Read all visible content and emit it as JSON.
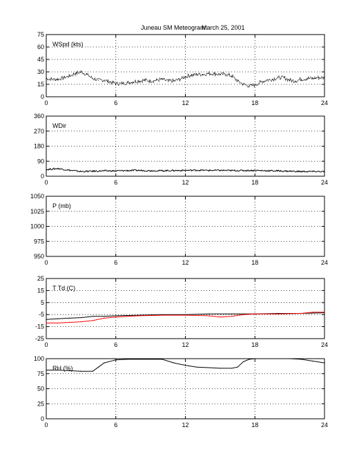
{
  "title": "Juneau SM Meteogram:",
  "date": "March 25, 2001",
  "chart_data": [
    {
      "type": "line",
      "label": "WSpd (kts)",
      "xlim": [
        0,
        24
      ],
      "ylim": [
        0,
        75
      ],
      "xticks": [
        "0",
        "6",
        "12",
        "18",
        "24"
      ],
      "yticks": [
        "0",
        "15",
        "30",
        "45",
        "60",
        "75"
      ],
      "grid": true,
      "series": [
        {
          "color": "#000000",
          "style": "points",
          "x": [
            0,
            0.5,
            1,
            1.5,
            2,
            2.5,
            3,
            3.5,
            4,
            4.5,
            5,
            5.5,
            6,
            6.5,
            7,
            7.5,
            8,
            8.5,
            9,
            9.5,
            10,
            10.5,
            11,
            11.5,
            12,
            12.5,
            13,
            13.5,
            14,
            14.5,
            15,
            15.5,
            16,
            16.5,
            17,
            17.5,
            18,
            18.5,
            19,
            19.5,
            20,
            20.5,
            21,
            21.5,
            22,
            22.5,
            23,
            23.5,
            24
          ],
          "y": [
            22,
            21,
            21,
            23,
            25,
            28,
            30,
            27,
            22,
            20,
            20,
            18,
            16,
            16,
            17,
            18,
            19,
            20,
            19,
            20,
            21,
            19,
            19,
            21,
            24,
            26,
            27,
            27,
            28,
            28,
            27,
            27,
            25,
            19,
            15,
            13,
            14,
            18,
            20,
            21,
            23,
            23,
            20,
            19,
            21,
            22,
            22,
            23,
            23
          ]
        }
      ]
    },
    {
      "type": "line",
      "label": "WDir",
      "xlim": [
        0,
        24
      ],
      "ylim": [
        0,
        360
      ],
      "xticks": [
        "0",
        "6",
        "12",
        "18",
        "24"
      ],
      "yticks": [
        "0",
        "90",
        "180",
        "270",
        "360"
      ],
      "grid": true,
      "series": [
        {
          "color": "#000000",
          "style": "noisy-line",
          "x": [
            0,
            1,
            2,
            3,
            4,
            5,
            6,
            7,
            8,
            9,
            10,
            11,
            12,
            13,
            14,
            15,
            16,
            17,
            18,
            19,
            20,
            21,
            22,
            23,
            24
          ],
          "y": [
            40,
            46,
            36,
            28,
            30,
            32,
            32,
            34,
            35,
            33,
            33,
            34,
            35,
            36,
            35,
            35,
            34,
            34,
            35,
            33,
            32,
            30,
            28,
            28,
            28
          ]
        }
      ]
    },
    {
      "type": "line",
      "label": "P (mb)",
      "xlim": [
        0,
        24
      ],
      "ylim": [
        950,
        1050
      ],
      "xticks": [
        "0",
        "6",
        "12",
        "18",
        "24"
      ],
      "yticks": [
        "950",
        "975",
        "1000",
        "1025",
        "1050"
      ],
      "grid": true,
      "series": []
    },
    {
      "type": "line",
      "label": "T Td (C)",
      "xlim": [
        0,
        24
      ],
      "ylim": [
        -25,
        25
      ],
      "xticks": [
        "0",
        "6",
        "12",
        "18",
        "24"
      ],
      "yticks": [
        "-25",
        "-15",
        "-5",
        "5",
        "15",
        "25"
      ],
      "grid": true,
      "series": [
        {
          "color": "#000000",
          "style": "line",
          "x": [
            0,
            1,
            2,
            3,
            4,
            5,
            6,
            8,
            10,
            12,
            14,
            16,
            18,
            20,
            22,
            24
          ],
          "y": [
            -9,
            -8.5,
            -8,
            -7.5,
            -6.5,
            -6.5,
            -6,
            -5.5,
            -5,
            -5,
            -4.5,
            -4.5,
            -4.5,
            -4,
            -4,
            -3.5
          ]
        },
        {
          "color": "#ff0000",
          "style": "line",
          "x": [
            0,
            1,
            2,
            3,
            4,
            5,
            6,
            8,
            10,
            12,
            14,
            15,
            16,
            17,
            18,
            20,
            22,
            23,
            24
          ],
          "y": [
            -12,
            -12,
            -11.5,
            -11,
            -10,
            -8,
            -7,
            -6,
            -5.5,
            -5.5,
            -6,
            -7,
            -6.5,
            -5,
            -4.5,
            -4.5,
            -4,
            -3,
            -3
          ]
        }
      ]
    },
    {
      "type": "line",
      "label": "RH (%)",
      "xlim": [
        0,
        24
      ],
      "ylim": [
        0,
        100
      ],
      "xticks": [
        "0",
        "6",
        "12",
        "18",
        "24"
      ],
      "yticks": [
        "0",
        "25",
        "50",
        "75",
        "100"
      ],
      "grid": true,
      "series": [
        {
          "color": "#000000",
          "style": "line",
          "x": [
            0,
            1,
            2,
            3,
            4,
            4.5,
            5,
            6,
            7,
            8,
            9,
            10,
            11,
            12,
            13,
            14,
            15,
            16,
            16.5,
            17,
            17.5,
            18,
            19,
            20,
            21,
            22,
            23,
            24
          ],
          "y": [
            81,
            81,
            80,
            79,
            79,
            86,
            93,
            98,
            99,
            99,
            99,
            99,
            93,
            89,
            86,
            85,
            84,
            84,
            86,
            95,
            99,
            100,
            100,
            100,
            100,
            99,
            96,
            93
          ]
        }
      ]
    }
  ]
}
